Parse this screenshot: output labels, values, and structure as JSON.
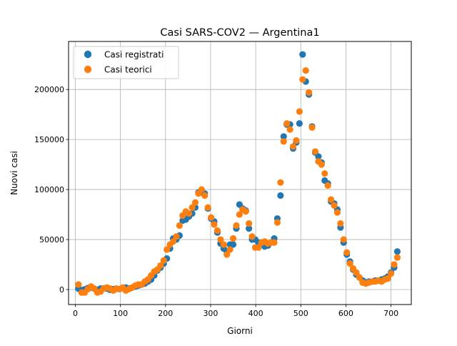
{
  "chart_data": {
    "type": "scatter",
    "title": "Casi SARS-COV2 — Argentina1",
    "xlabel": "Giorni",
    "ylabel": "Nuovi casi",
    "xlim": [
      -15,
      745
    ],
    "ylim": [
      -15000,
      248000
    ],
    "xticks": [
      0,
      100,
      200,
      300,
      400,
      500,
      600,
      700
    ],
    "yticks": [
      0,
      50000,
      100000,
      150000,
      200000
    ],
    "ytick_labels": [
      "0",
      "50000",
      "100000",
      "150000",
      "200000"
    ],
    "grid": true,
    "legend_position": "top-left",
    "series": [
      {
        "name": "Casi registrati",
        "color": "#1f77b4",
        "x": [
          7,
          14,
          21,
          28,
          35,
          42,
          49,
          56,
          63,
          70,
          77,
          84,
          91,
          98,
          105,
          112,
          119,
          126,
          133,
          140,
          147,
          154,
          161,
          168,
          175,
          182,
          189,
          196,
          203,
          210,
          217,
          224,
          231,
          238,
          245,
          252,
          259,
          266,
          273,
          280,
          287,
          294,
          301,
          308,
          315,
          322,
          329,
          336,
          343,
          350,
          357,
          364,
          371,
          378,
          385,
          392,
          399,
          406,
          413,
          420,
          427,
          434,
          441,
          448,
          455,
          462,
          469,
          476,
          483,
          490,
          497,
          504,
          511,
          518,
          525,
          532,
          539,
          546,
          553,
          560,
          567,
          574,
          581,
          588,
          595,
          602,
          609,
          616,
          623,
          630,
          637,
          644,
          651,
          658,
          665,
          672,
          679,
          686,
          693,
          700,
          707,
          714
        ],
        "y": [
          800,
          -500,
          200,
          1500,
          2000,
          800,
          -200,
          1000,
          1200,
          1000,
          -300,
          500,
          700,
          500,
          1500,
          2000,
          1000,
          2000,
          3000,
          4000,
          5000,
          6000,
          8000,
          10000,
          14000,
          19000,
          22000,
          26000,
          31000,
          41000,
          51000,
          50000,
          54000,
          69000,
          70000,
          73000,
          76000,
          82000,
          97000,
          97000,
          96000,
          81000,
          71000,
          68000,
          57000,
          46000,
          41000,
          38000,
          45000,
          45000,
          61000,
          85000,
          81000,
          79000,
          61000,
          50000,
          50000,
          47000,
          47000,
          43000,
          44000,
          47000,
          51000,
          71000,
          94000,
          153000,
          165000,
          165000,
          141000,
          147000,
          166000,
          235000,
          208000,
          195000,
          163000,
          137000,
          133000,
          127000,
          109000,
          106000,
          88000,
          86000,
          80000,
          62000,
          47000,
          35000,
          28000,
          20000,
          15000,
          12000,
          9000,
          7000,
          8000,
          8000,
          9000,
          9000,
          10000,
          11000,
          13000,
          17000,
          22000,
          38000
        ]
      },
      {
        "name": "Casi teorici",
        "color": "#ff7f0e",
        "x": [
          7,
          14,
          21,
          28,
          35,
          42,
          49,
          56,
          63,
          70,
          77,
          84,
          91,
          98,
          105,
          112,
          119,
          126,
          133,
          140,
          147,
          154,
          161,
          168,
          175,
          182,
          189,
          196,
          203,
          210,
          217,
          224,
          231,
          238,
          245,
          252,
          259,
          266,
          273,
          280,
          287,
          294,
          301,
          308,
          315,
          322,
          329,
          336,
          343,
          350,
          357,
          364,
          371,
          378,
          385,
          392,
          399,
          406,
          413,
          420,
          427,
          434,
          441,
          448,
          455,
          462,
          469,
          476,
          483,
          490,
          497,
          504,
          511,
          518,
          525,
          532,
          539,
          546,
          553,
          560,
          567,
          574,
          581,
          588,
          595,
          602,
          609,
          616,
          623,
          630,
          637,
          644,
          651,
          658,
          665,
          672,
          679,
          686,
          693,
          700,
          707,
          714
        ],
        "y": [
          5000,
          -3000,
          -3000,
          500,
          3000,
          1000,
          -3000,
          -2000,
          1000,
          2000,
          1000,
          -1000,
          1000,
          500,
          2000,
          -1000,
          500,
          2000,
          4000,
          5000,
          5000,
          8000,
          10000,
          14000,
          18000,
          20000,
          24000,
          29000,
          40000,
          45000,
          48000,
          53000,
          64000,
          74000,
          78000,
          76000,
          82000,
          87000,
          96000,
          100000,
          94000,
          82000,
          72000,
          65000,
          59000,
          50000,
          45000,
          35000,
          40000,
          51000,
          64000,
          75000,
          80000,
          78000,
          66000,
          53000,
          42000,
          42000,
          47000,
          48000,
          46000,
          47000,
          47000,
          67000,
          107000,
          148000,
          166000,
          160000,
          143000,
          149000,
          178000,
          210000,
          219000,
          197000,
          162000,
          138000,
          128000,
          125000,
          116000,
          104000,
          90000,
          84000,
          77000,
          66000,
          50000,
          37000,
          26000,
          21000,
          17000,
          12000,
          7000,
          6000,
          7000,
          8000,
          8000,
          9000,
          8000,
          10000,
          11000,
          16000,
          25000,
          32000
        ]
      }
    ]
  }
}
